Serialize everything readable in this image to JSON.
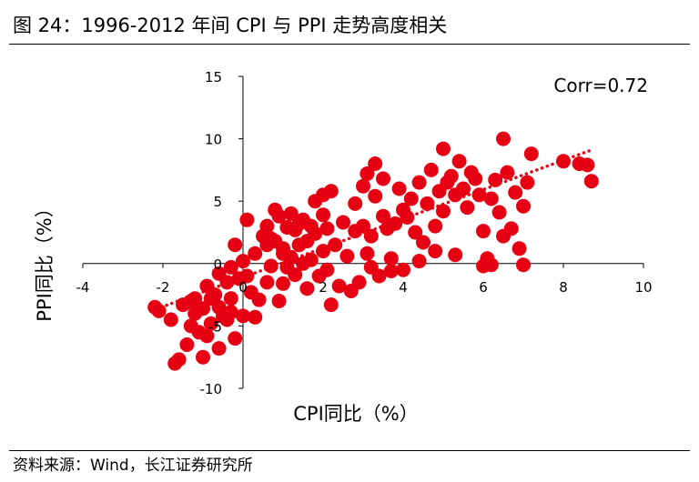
{
  "figure": {
    "label": "图 24：",
    "title": "1996-2012 年间 CPI 与 PPI 走势高度相关"
  },
  "source": "资料来源：Wind，长江证券研究所",
  "chart_data": {
    "type": "scatter",
    "title": "",
    "xlabel": "CPI同比（%）",
    "ylabel": "PPI同比（%）",
    "xlim": [
      -4,
      10
    ],
    "ylim": [
      -10,
      15
    ],
    "xticks": [
      "-4",
      "-2",
      "0",
      "2",
      "4",
      "6",
      "8",
      "10"
    ],
    "yticks": [
      "-10",
      "-5",
      "0",
      "5",
      "10",
      "15"
    ],
    "annotation": "Corr=0.72",
    "grid": false,
    "legend": "none",
    "marker_color": "#e60012",
    "trendline": {
      "style": "dotted",
      "color": "#e60012",
      "x": [
        -2.3,
        8.7
      ],
      "y": [
        -3.8,
        9.1
      ]
    },
    "points": [
      [
        -2.1,
        -3.8
      ],
      [
        -2.2,
        -3.5
      ],
      [
        -1.8,
        -4.5
      ],
      [
        -1.7,
        -8.0
      ],
      [
        -1.6,
        -7.7
      ],
      [
        -1.4,
        -6.5
      ],
      [
        -1.3,
        -5.0
      ],
      [
        -1.2,
        -4.0
      ],
      [
        -1.1,
        -5.5
      ],
      [
        -1.0,
        -7.5
      ],
      [
        -0.9,
        -5.8
      ],
      [
        -0.8,
        -4.8
      ],
      [
        -0.7,
        -2.5
      ],
      [
        -0.6,
        -6.8
      ],
      [
        -0.5,
        -4.2
      ],
      [
        -0.4,
        -4.5
      ],
      [
        -0.3,
        -2.8
      ],
      [
        -0.2,
        -6.0
      ],
      [
        -1.5,
        -3.3
      ],
      [
        -1.2,
        -2.8
      ],
      [
        -0.9,
        -1.8
      ],
      [
        -0.8,
        -2.8
      ],
      [
        -0.6,
        -0.8
      ],
      [
        -0.4,
        -1.5
      ],
      [
        -0.3,
        -0.3
      ],
      [
        -0.6,
        -3.5
      ],
      [
        -0.3,
        -3.9
      ],
      [
        -1.0,
        -3.6
      ],
      [
        -1.3,
        -3.0
      ],
      [
        -0.2,
        1.5
      ],
      [
        -0.1,
        -1.2
      ],
      [
        0.0,
        0.2
      ],
      [
        0.0,
        -4.2
      ],
      [
        0.1,
        -1.0
      ],
      [
        0.1,
        3.5
      ],
      [
        0.2,
        -2.3
      ],
      [
        0.3,
        0.8
      ],
      [
        0.3,
        -4.3
      ],
      [
        0.4,
        -2.9
      ],
      [
        0.5,
        2.2
      ],
      [
        0.6,
        1.5
      ],
      [
        0.6,
        3.0
      ],
      [
        0.6,
        -1.5
      ],
      [
        0.7,
        2.0
      ],
      [
        0.7,
        -0.2
      ],
      [
        0.8,
        1.8
      ],
      [
        0.8,
        4.3
      ],
      [
        0.9,
        3.8
      ],
      [
        0.9,
        -3.0
      ],
      [
        1.0,
        1.2
      ],
      [
        1.0,
        0.8
      ],
      [
        1.0,
        -1.6
      ],
      [
        1.1,
        2.9
      ],
      [
        1.1,
        -0.3
      ],
      [
        1.2,
        4.0
      ],
      [
        1.2,
        0.5
      ],
      [
        1.3,
        2.7
      ],
      [
        1.3,
        -0.9
      ],
      [
        1.4,
        3.2
      ],
      [
        1.4,
        1.5
      ],
      [
        1.5,
        0.0
      ],
      [
        1.5,
        3.5
      ],
      [
        1.6,
        1.8
      ],
      [
        1.6,
        -2.0
      ],
      [
        1.7,
        0.3
      ],
      [
        1.7,
        3.0
      ],
      [
        1.8,
        5.0
      ],
      [
        1.8,
        2.4
      ],
      [
        1.9,
        -1.0
      ],
      [
        2.0,
        3.9
      ],
      [
        2.0,
        1.0
      ],
      [
        2.0,
        5.5
      ],
      [
        2.1,
        -0.5
      ],
      [
        2.1,
        2.8
      ],
      [
        2.2,
        -3.3
      ],
      [
        2.2,
        5.8
      ],
      [
        2.3,
        1.5
      ],
      [
        2.4,
        -1.8
      ],
      [
        2.5,
        3.3
      ],
      [
        2.6,
        0.6
      ],
      [
        2.7,
        -2.2
      ],
      [
        2.8,
        4.8
      ],
      [
        2.8,
        2.6
      ],
      [
        2.9,
        -1.5
      ],
      [
        3.0,
        6.2
      ],
      [
        3.0,
        3.0
      ],
      [
        3.1,
        7.2
      ],
      [
        3.1,
        0.8
      ],
      [
        3.2,
        -0.3
      ],
      [
        3.2,
        2.2
      ],
      [
        3.3,
        5.4
      ],
      [
        3.3,
        8.0
      ],
      [
        3.4,
        -1.0
      ],
      [
        3.5,
        6.8
      ],
      [
        3.5,
        3.8
      ],
      [
        3.6,
        2.8
      ],
      [
        3.7,
        0.4
      ],
      [
        3.7,
        -0.6
      ],
      [
        3.8,
        3.2
      ],
      [
        3.9,
        6.0
      ],
      [
        4.0,
        4.3
      ],
      [
        4.0,
        -0.5
      ],
      [
        4.1,
        3.7
      ],
      [
        4.2,
        5.2
      ],
      [
        4.3,
        2.5
      ],
      [
        4.4,
        6.5
      ],
      [
        4.4,
        0.2
      ],
      [
        4.5,
        1.7
      ],
      [
        4.6,
        4.8
      ],
      [
        4.7,
        7.5
      ],
      [
        4.8,
        3.0
      ],
      [
        4.8,
        1.0
      ],
      [
        4.9,
        5.8
      ],
      [
        5.0,
        9.2
      ],
      [
        5.0,
        4.2
      ],
      [
        5.1,
        6.5
      ],
      [
        5.2,
        7.0
      ],
      [
        5.3,
        5.5
      ],
      [
        5.3,
        0.7
      ],
      [
        5.4,
        8.2
      ],
      [
        5.5,
        6.0
      ],
      [
        5.6,
        4.5
      ],
      [
        5.7,
        7.3
      ],
      [
        5.8,
        6.8
      ],
      [
        5.9,
        5.5
      ],
      [
        6.0,
        2.6
      ],
      [
        6.0,
        -0.2
      ],
      [
        6.1,
        0.4
      ],
      [
        6.2,
        5.2
      ],
      [
        6.3,
        6.7
      ],
      [
        6.4,
        4.1
      ],
      [
        6.5,
        10.0
      ],
      [
        6.6,
        7.3
      ],
      [
        6.7,
        2.8
      ],
      [
        6.8,
        5.7
      ],
      [
        6.9,
        1.2
      ],
      [
        7.0,
        4.6
      ],
      [
        7.0,
        -0.1
      ],
      [
        7.1,
        6.5
      ],
      [
        7.2,
        8.8
      ],
      [
        8.0,
        8.2
      ],
      [
        8.4,
        8.0
      ],
      [
        8.6,
        7.9
      ],
      [
        8.7,
        6.6
      ],
      [
        6.5,
        2.2
      ],
      [
        6.2,
        -0.1
      ]
    ]
  }
}
